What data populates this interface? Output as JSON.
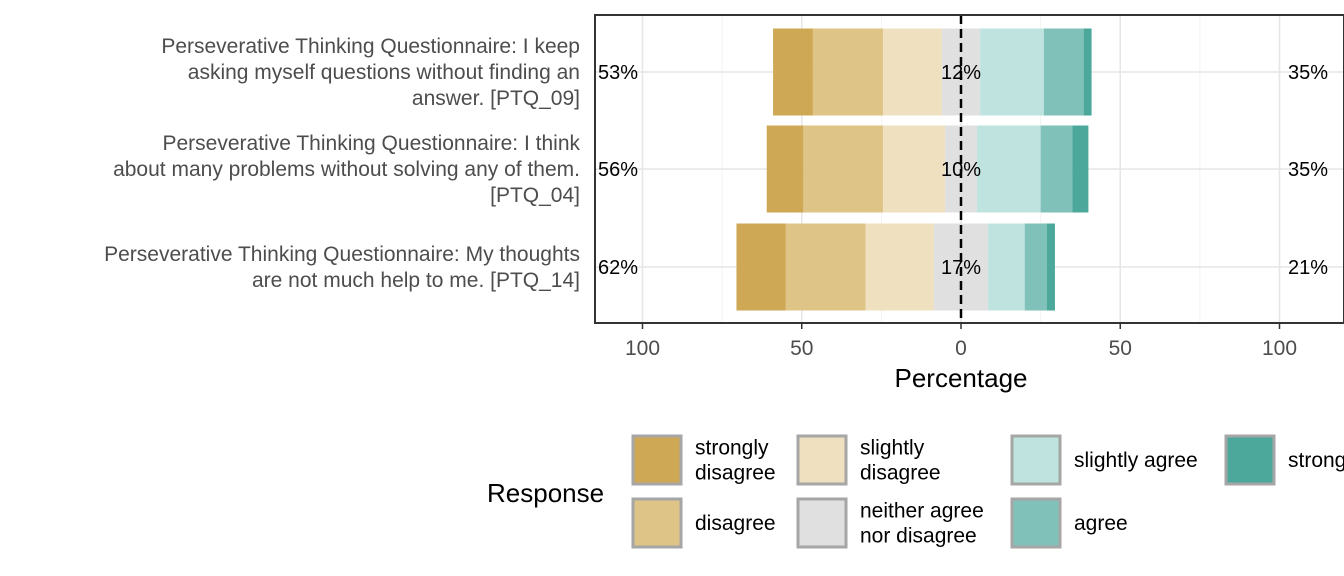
{
  "chart_data": {
    "type": "bar",
    "orientation": "horizontal-diverging-stacked",
    "xlabel": "Percentage",
    "x_ticks": [
      "100",
      "50",
      "0",
      "50",
      "100"
    ],
    "xlim": [
      -100,
      100
    ],
    "grid": true,
    "legend_position": "bottom",
    "legend_title": "Response",
    "levels": [
      {
        "name": "strongly disagree",
        "color": "#CFA855"
      },
      {
        "name": "disagree",
        "color": "#DFC487"
      },
      {
        "name": "slightly disagree",
        "color": "#EFE0BF"
      },
      {
        "name": "neither agree nor disagree",
        "color": "#E0E0E0"
      },
      {
        "name": "slightly agree",
        "color": "#BFE3DF"
      },
      {
        "name": "agree",
        "color": "#80C2B9"
      },
      {
        "name": "strongly agree",
        "color": "#4BA89B"
      }
    ],
    "legend_labels": [
      [
        "strongly",
        "disagree"
      ],
      [
        "disagree"
      ],
      [
        "slightly",
        "disagree"
      ],
      [
        "neither agree",
        "nor disagree"
      ],
      [
        "slightly agree"
      ],
      [
        "agree"
      ],
      [
        "strongly agree"
      ]
    ],
    "items": [
      {
        "label_lines": [
          "Perseverative Thinking Questionnaire: I keep",
          "asking myself questions without finding an",
          "answer. [PTQ_09]"
        ],
        "values": [
          12.5,
          22,
          18.5,
          12,
          20,
          12.5,
          2.5
        ],
        "left_pct": "53%",
        "center_pct": "12%",
        "right_pct": "35%"
      },
      {
        "label_lines": [
          "Perseverative Thinking Questionnaire: I think",
          "about many problems without solving any of them.",
          "[PTQ_04]"
        ],
        "values": [
          11.5,
          25,
          19.5,
          10,
          20,
          10,
          5
        ],
        "left_pct": "56%",
        "center_pct": "10%",
        "right_pct": "35%"
      },
      {
        "label_lines": [
          "Perseverative Thinking Questionnaire: My thoughts",
          "are not much help to me. [PTQ_14]"
        ],
        "values": [
          15.5,
          25,
          21.5,
          17,
          11.5,
          7,
          2.5
        ],
        "left_pct": "62%",
        "center_pct": "17%",
        "right_pct": "21%"
      }
    ]
  }
}
